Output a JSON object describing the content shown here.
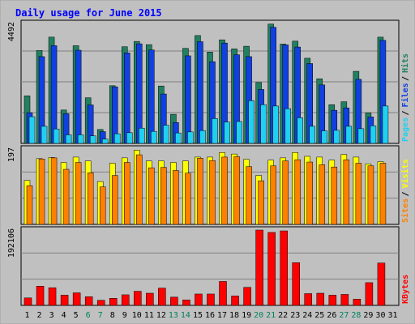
{
  "chart_data": {
    "type": "bar",
    "title": "Daily usage for June 2015",
    "days": [
      "1",
      "2",
      "3",
      "4",
      "5",
      "6",
      "7",
      "8",
      "9",
      "10",
      "11",
      "12",
      "13",
      "14",
      "15",
      "16",
      "17",
      "18",
      "19",
      "20",
      "21",
      "22",
      "23",
      "24",
      "25",
      "26",
      "27",
      "28",
      "29",
      "30",
      "31"
    ],
    "weekend_days": [
      "6",
      "7",
      "13",
      "14",
      "20",
      "21",
      "27",
      "28"
    ],
    "panels": [
      {
        "id": "hits-files-pages",
        "max_label": "4492",
        "ymax": 4492,
        "series": [
          {
            "name": "Hits",
            "color": "#208060",
            "values": [
              1780,
              3480,
              3980,
              1250,
              3660,
              1710,
              520,
              2160,
              3620,
              3820,
              3700,
              2150,
              1090,
              3560,
              4040,
              3420,
              3880,
              3540,
              3640,
              2280,
              4470,
              3720,
              3830,
              3190,
              2420,
              1450,
              1560,
              2700,
              1140,
              3980
            ]
          },
          {
            "name": "Files",
            "color": "#1040e0",
            "values": [
              1150,
              3250,
              3660,
              1110,
              3490,
              1440,
              440,
              2120,
              3390,
              3730,
              3500,
              1850,
              780,
              3280,
              3810,
              3060,
              3760,
              3320,
              3250,
              2020,
              4350,
              3690,
              3610,
              2990,
              2190,
              1240,
              1330,
              2400,
              990,
              3860
            ]
          },
          {
            "name": "Pages",
            "color": "#20d0f0",
            "values": [
              1000,
              640,
              540,
              320,
              320,
              280,
              160,
              360,
              400,
              570,
              450,
              680,
              390,
              430,
              480,
              930,
              800,
              820,
              1600,
              1450,
              1400,
              1300,
              960,
              640,
              470,
              490,
              640,
              550,
              660,
              1400
            ]
          }
        ]
      },
      {
        "id": "visits-sites",
        "max_label": "197",
        "ymax": 197,
        "series": [
          {
            "name": "Visits",
            "color": "#ffff00",
            "values": [
              115,
              172,
              175,
              162,
              176,
              166,
              112,
              160,
              174,
              194,
              166,
              166,
              162,
              166,
              176,
              176,
              188,
              184,
              170,
              128,
              168,
              174,
              188,
              178,
              176,
              168,
              183,
              176,
              158,
              164
            ]
          },
          {
            "name": "Sites",
            "color": "#ff8000",
            "values": [
              101,
              171,
              174,
              144,
              162,
              135,
              98,
              128,
              162,
              182,
              148,
              149,
              141,
              134,
              173,
              167,
              176,
              177,
              151,
              114,
              153,
              166,
              169,
              163,
              156,
              150,
              169,
              160,
              153,
              160
            ]
          }
        ]
      },
      {
        "id": "kbytes",
        "max_label": "192106",
        "ymax": 192106,
        "series": [
          {
            "name": "KBytes",
            "color": "#ff0000",
            "values": [
              19000,
              49000,
              45000,
              26000,
              32000,
              22000,
              13000,
              18000,
              27000,
              36000,
              31000,
              44000,
              21000,
              14000,
              29000,
              29000,
              61000,
              24000,
              46000,
              192106,
              186000,
              190000,
              109000,
              30000,
              31000,
              26000,
              28000,
              16000,
              58000,
              108000
            ]
          }
        ]
      }
    ]
  }
}
